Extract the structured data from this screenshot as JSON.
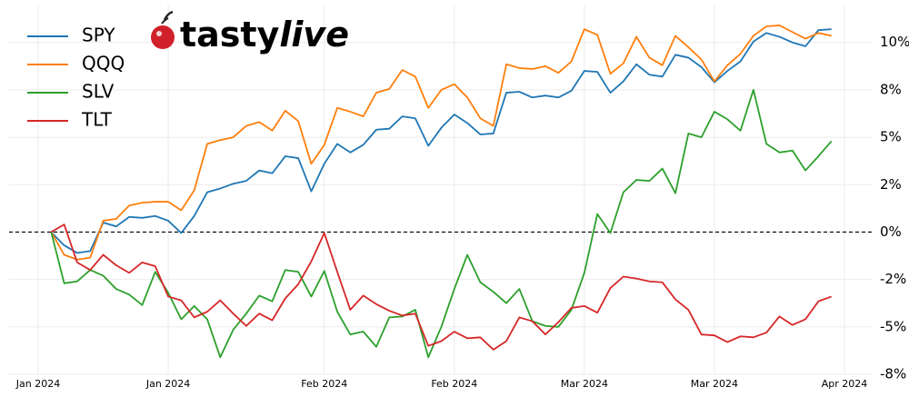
{
  "chart_data": {
    "type": "line",
    "logo_text": [
      "tasty",
      "live"
    ],
    "categories": [
      "Jan 2024",
      null,
      null,
      null,
      null,
      null,
      null,
      null,
      null,
      null,
      "Jan 2024",
      null,
      null,
      null,
      null,
      null,
      null,
      null,
      null,
      null,
      null,
      null,
      "Feb 2024",
      null,
      null,
      null,
      null,
      null,
      null,
      null,
      null,
      null,
      "Feb 2024",
      null,
      null,
      null,
      null,
      null,
      null,
      null,
      null,
      null,
      "Mar 2024",
      null,
      null,
      null,
      null,
      null,
      null,
      null,
      null,
      null,
      "Mar 2024",
      null,
      null,
      null,
      null,
      null,
      null,
      null,
      null,
      null,
      "Apr 2024"
    ],
    "series": [
      {
        "name": "SPY",
        "color": "#1f77b4",
        "values": [
          null,
          0,
          -0.7,
          -1.1,
          -1.0,
          0.5,
          0.3,
          0.8,
          0.75,
          0.85,
          0.6,
          -0.05,
          0.85,
          2.1,
          2.3,
          2.55,
          2.7,
          3.25,
          3.1,
          4.0,
          3.9,
          2.15,
          3.6,
          4.65,
          4.2,
          4.6,
          5.4,
          5.45,
          6.1,
          6.0,
          4.55,
          5.5,
          6.2,
          5.75,
          5.15,
          5.2,
          7.35,
          7.4,
          7.1,
          7.2,
          7.1,
          7.45,
          8.5,
          8.45,
          7.35,
          7.95,
          8.85,
          8.3,
          8.2,
          9.35,
          9.2,
          8.7,
          7.9,
          8.5,
          9.0,
          10.05,
          10.5,
          10.3,
          10.0,
          9.8,
          10.65,
          10.7,
          null
        ]
      },
      {
        "name": "QQQ",
        "color": "#ff7f0e",
        "values": [
          null,
          0,
          -1.2,
          -1.45,
          -1.35,
          0.6,
          0.7,
          1.4,
          1.55,
          1.6,
          1.6,
          1.15,
          2.2,
          4.65,
          4.85,
          5.0,
          5.6,
          5.8,
          5.35,
          6.4,
          5.85,
          3.6,
          4.6,
          6.55,
          6.35,
          6.1,
          7.35,
          7.55,
          8.55,
          8.2,
          6.55,
          7.5,
          7.8,
          7.1,
          6.0,
          5.6,
          8.85,
          8.65,
          8.6,
          8.75,
          8.4,
          9.0,
          10.7,
          10.4,
          8.35,
          8.9,
          10.3,
          9.2,
          8.8,
          10.35,
          9.75,
          9.1,
          7.95,
          8.8,
          9.4,
          10.35,
          10.85,
          10.9,
          10.55,
          10.2,
          10.5,
          10.35,
          null
        ]
      },
      {
        "name": "SLV",
        "color": "#2ca02c",
        "values": [
          null,
          0,
          -2.7,
          -2.6,
          -2.0,
          -2.3,
          -3.0,
          -3.3,
          -3.85,
          -2.1,
          -3.2,
          -4.6,
          -3.9,
          -4.6,
          -6.6,
          -5.15,
          -4.3,
          -3.35,
          -3.65,
          -2.0,
          -2.1,
          -3.4,
          -2.05,
          -4.2,
          -5.4,
          -5.25,
          -6.05,
          -4.5,
          -4.45,
          -4.1,
          -6.6,
          -5.0,
          -3.0,
          -1.2,
          -2.65,
          -3.15,
          -3.75,
          -3.0,
          -4.7,
          -4.95,
          -5.0,
          -4.1,
          -2.15,
          0.95,
          -0.05,
          2.1,
          2.75,
          2.7,
          3.35,
          2.05,
          5.2,
          5.0,
          6.35,
          5.95,
          5.35,
          7.5,
          4.65,
          4.2,
          4.3,
          3.25,
          4.0,
          4.8,
          null
        ]
      },
      {
        "name": "TLT",
        "color": "#d62728",
        "values": [
          null,
          0,
          0.4,
          -1.6,
          -2.0,
          -1.2,
          -1.75,
          -2.15,
          -1.6,
          -1.8,
          -3.4,
          -3.6,
          -4.5,
          -4.2,
          -3.6,
          -4.3,
          -4.95,
          -4.3,
          -4.65,
          -3.5,
          -2.75,
          -1.55,
          -0.05,
          -2.1,
          -4.1,
          -3.35,
          -3.8,
          -4.15,
          -4.4,
          -4.3,
          -6.0,
          -5.75,
          -5.25,
          -5.6,
          -5.55,
          -6.2,
          -5.75,
          -4.5,
          -4.7,
          -5.4,
          -4.75,
          -4.0,
          -3.9,
          -4.25,
          -2.95,
          -2.35,
          -2.45,
          -2.6,
          -2.65,
          -3.55,
          -4.1,
          -5.4,
          -5.45,
          -5.8,
          -5.5,
          -5.55,
          -5.3,
          -4.45,
          -4.9,
          -4.6,
          -3.65,
          -3.4,
          null
        ]
      }
    ],
    "ylim": [
      -7.5,
      12
    ],
    "yticks": [
      {
        "value": -7.5,
        "label": "-8%"
      },
      {
        "value": -5,
        "label": "-5%"
      },
      {
        "value": -2.5,
        "label": "-2%"
      },
      {
        "value": 0,
        "label": "0%"
      },
      {
        "value": 2.5,
        "label": "2%"
      },
      {
        "value": 5,
        "label": "5%"
      },
      {
        "value": 7.5,
        "label": "8%"
      },
      {
        "value": 10,
        "label": "10%"
      }
    ],
    "reference_line": 0,
    "grid": true,
    "legend": "upper left",
    "y_axis_side": "right"
  }
}
